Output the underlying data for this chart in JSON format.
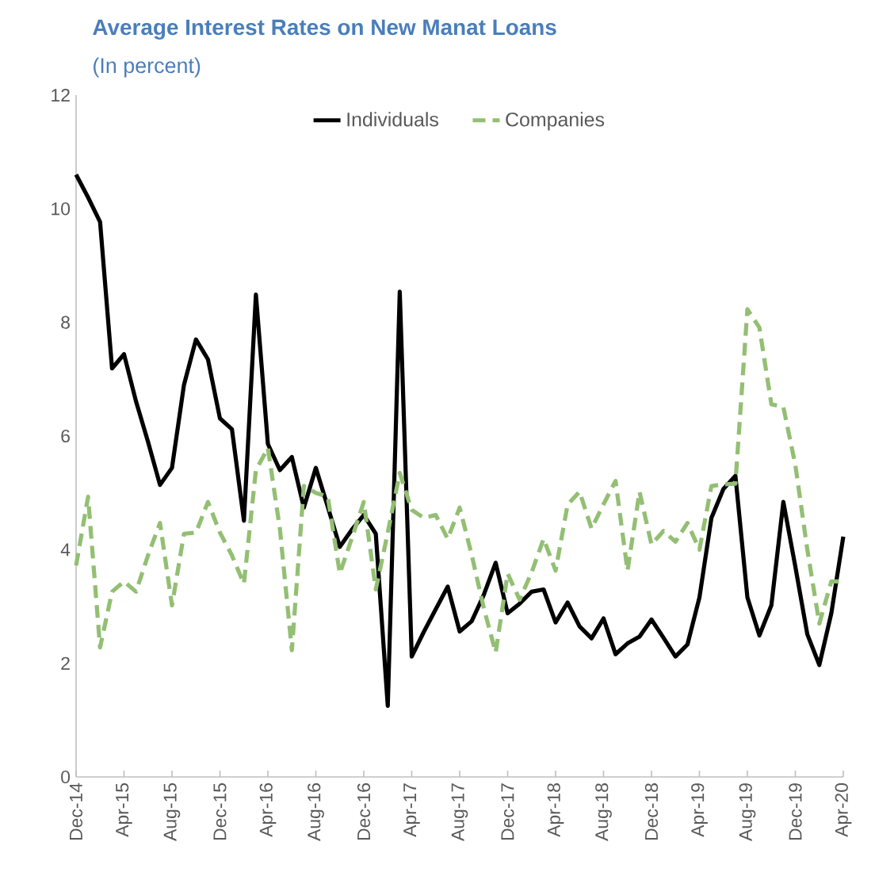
{
  "chart_data": {
    "type": "line",
    "title": "Average Interest Rates on New Manat Loans",
    "subtitle": "(In percent)",
    "categories": [
      "Dec-14",
      null,
      null,
      null,
      "Apr-15",
      null,
      null,
      null,
      "Aug-15",
      null,
      null,
      null,
      "Dec-15",
      null,
      null,
      null,
      "Apr-16",
      null,
      null,
      null,
      "Aug-16",
      null,
      null,
      null,
      "Dec-16",
      null,
      null,
      null,
      "Apr-17",
      null,
      null,
      null,
      "Aug-17",
      null,
      null,
      null,
      "Dec-17",
      null,
      null,
      null,
      "Apr-18",
      null,
      null,
      null,
      "Aug-18",
      null,
      null,
      null,
      "Dec-18",
      null,
      null,
      null,
      "Apr-19",
      null,
      null,
      null,
      "Aug-19",
      null,
      null,
      null,
      "Dec-19",
      null,
      null,
      null,
      "Apr-20"
    ],
    "series": [
      {
        "name": "Individuals",
        "color": "#000000",
        "line_style": "solid",
        "values": [
          10.6,
          10.2,
          9.77,
          7.19,
          7.44,
          6.61,
          5.9,
          5.14,
          5.44,
          6.9,
          7.7,
          7.35,
          6.31,
          6.12,
          4.51,
          8.49,
          5.86,
          5.4,
          5.63,
          4.74,
          5.44,
          4.75,
          4.05,
          4.35,
          4.61,
          4.28,
          1.25,
          8.54,
          2.12,
          2.55,
          2.95,
          3.35,
          2.56,
          2.74,
          3.2,
          3.77,
          2.88,
          3.05,
          3.26,
          3.3,
          2.72,
          3.07,
          2.65,
          2.44,
          2.79,
          2.16,
          2.35,
          2.47,
          2.77,
          2.45,
          2.12,
          2.33,
          3.16,
          4.56,
          5.07,
          5.3,
          3.16,
          2.49,
          3.02,
          4.84,
          3.7,
          2.51,
          1.97,
          2.88,
          4.23
        ]
      },
      {
        "name": "Companies",
        "color": "#93bf73",
        "line_style": "dashed",
        "values": [
          3.72,
          4.93,
          2.28,
          3.26,
          3.44,
          3.26,
          3.9,
          4.47,
          3.02,
          4.28,
          4.3,
          4.84,
          4.3,
          3.9,
          3.4,
          5.4,
          5.79,
          4.37,
          2.23,
          5.12,
          5.0,
          4.93,
          3.58,
          4.2,
          4.84,
          3.3,
          4.3,
          5.35,
          4.7,
          4.56,
          4.61,
          4.19,
          4.74,
          3.91,
          2.98,
          2.19,
          3.58,
          3.12,
          3.6,
          4.19,
          3.63,
          4.79,
          5.02,
          4.37,
          4.8,
          5.21,
          3.63,
          5.02,
          4.09,
          4.33,
          4.14,
          4.47,
          4.0,
          5.12,
          5.15,
          5.16,
          8.23,
          7.91,
          6.56,
          6.51,
          5.49,
          4.0,
          2.7,
          3.44,
          3.44
        ]
      }
    ],
    "ylim": [
      0,
      12
    ],
    "yticks": [
      0,
      2,
      4,
      6,
      8,
      10,
      12
    ],
    "legend": "top"
  }
}
